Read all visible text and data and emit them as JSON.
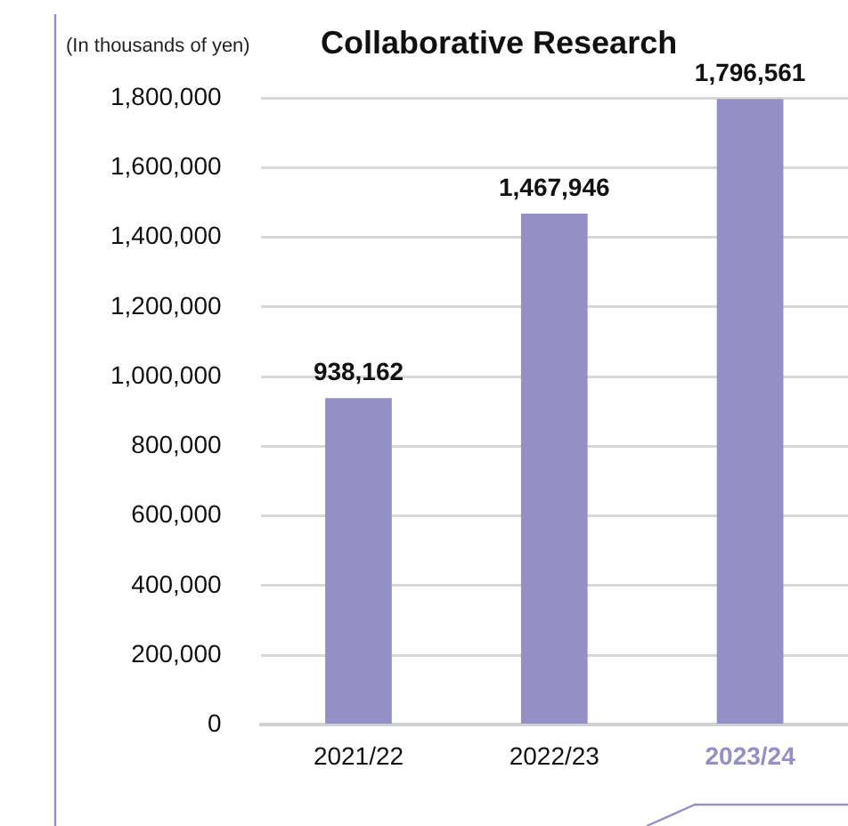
{
  "chart_data": {
    "type": "bar",
    "title": "Collaborative Research",
    "ylabel": "(In thousands of yen)",
    "categories": [
      "2021/22",
      "2022/23",
      "2023/24"
    ],
    "values": [
      938162,
      1467946,
      1796561
    ],
    "value_labels": [
      "938,162",
      "1,467,946",
      "1,796,561"
    ],
    "color": "#9490c6",
    "ylim": [
      0,
      1800000
    ],
    "yticks": [
      0,
      {
        "value": 200000,
        "label": "200,000"
      },
      {
        "value": 400000,
        "label": "400,000"
      },
      {
        "value": 600000,
        "label": "600,000"
      },
      {
        "value": 800000,
        "label": "800,000"
      },
      {
        "value": 1000000,
        "label": "1,000,000"
      },
      {
        "value": 1200000,
        "label": "1,200,000"
      },
      {
        "value": 1400000,
        "label": "1,400,000"
      },
      {
        "value": 1600000,
        "label": "1,600,000"
      },
      {
        "value": 1800000,
        "label": "1,800,000"
      }
    ],
    "grid": "y"
  }
}
